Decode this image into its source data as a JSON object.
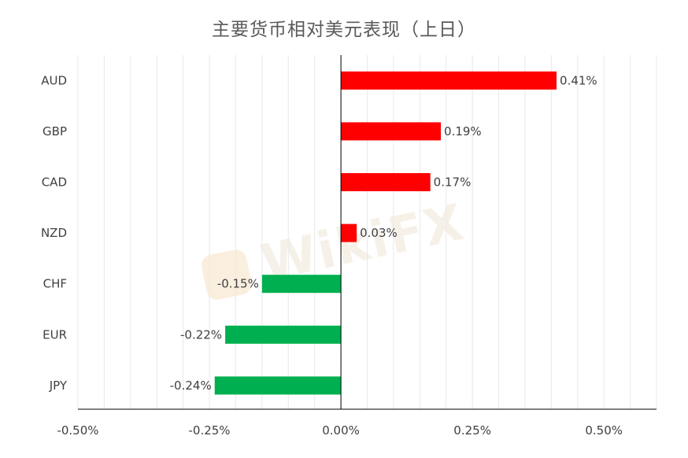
{
  "chart_data": {
    "type": "bar",
    "orientation": "horizontal",
    "title": "主要货币相对美元表现（上日）",
    "categories": [
      "AUD",
      "GBP",
      "CAD",
      "NZD",
      "CHF",
      "EUR",
      "JPY"
    ],
    "values": [
      0.41,
      0.19,
      0.17,
      0.03,
      -0.15,
      -0.22,
      -0.24
    ],
    "value_labels": [
      "0.41%",
      "0.19%",
      "0.17%",
      "0.03%",
      "-0.15%",
      "-0.22%",
      "-0.24%"
    ],
    "xlim": [
      -0.5,
      0.6
    ],
    "x_ticks": [
      -0.5,
      -0.25,
      0,
      0.25,
      0.5
    ],
    "x_tick_labels": [
      "-0.50%",
      "-0.25%",
      "0.00%",
      "0.25%",
      "0.50%"
    ],
    "xlabel": "",
    "ylabel": "",
    "grid": "vertical",
    "legend": "none",
    "colors": {
      "positive": "#ff0000",
      "negative": "#00b050",
      "grid": "#e8e8e8",
      "axis": "#000000"
    }
  },
  "watermark_text": "WikiFX"
}
